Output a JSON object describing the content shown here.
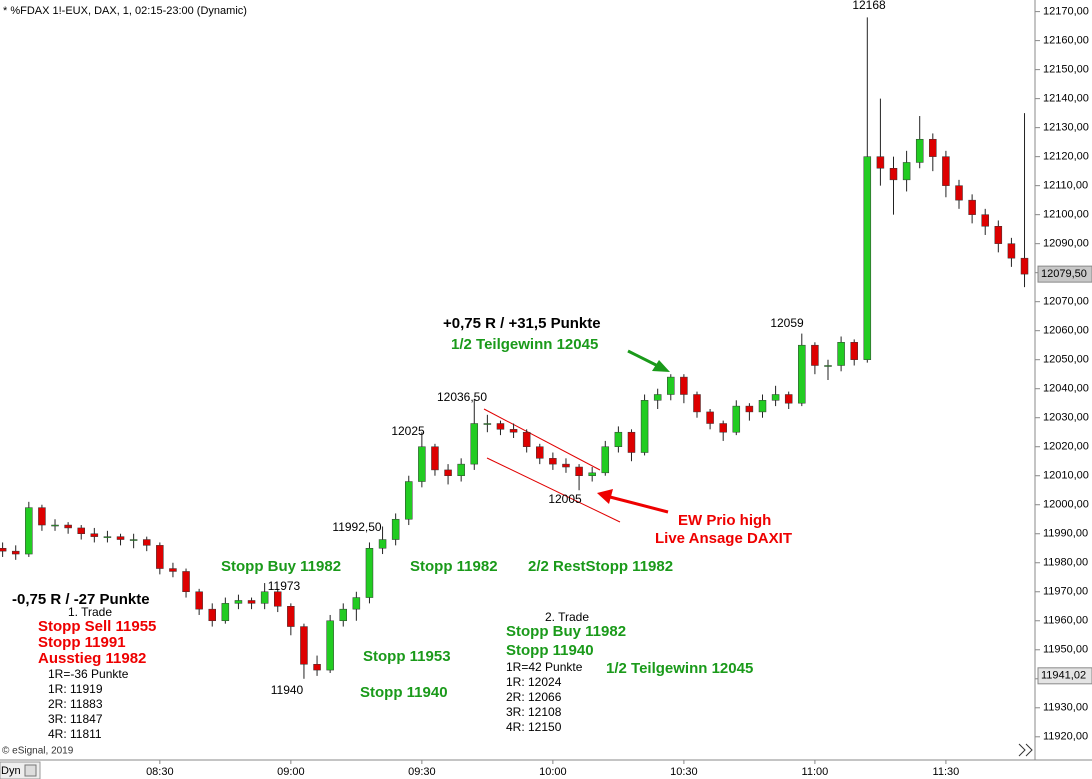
{
  "chart_data": {
    "type": "candlestick",
    "title": "* %FDAX 1!-EUX, DAX, 1, 02:15-23:00 (Dynamic)",
    "source": "© eSignal, 2019",
    "mode_label": "Dyn",
    "up_color": "#22cc22",
    "down_color": "#dd0000",
    "xlim": [
      -0.2,
      78.8
    ],
    "xticks": [
      {
        "value": 12,
        "label": "08:30"
      },
      {
        "value": 22,
        "label": "09:00"
      },
      {
        "value": 32,
        "label": "09:30"
      },
      {
        "value": 42,
        "label": "10:00"
      },
      {
        "value": 52,
        "label": "10:30"
      },
      {
        "value": 62,
        "label": "11:00"
      },
      {
        "value": 72,
        "label": "11:30"
      }
    ],
    "ylim": [
      11912,
      12174
    ],
    "yticks": [
      {
        "value": 11920,
        "label": "11920,00"
      },
      {
        "value": 11930,
        "label": "11930,00"
      },
      {
        "value": 11940,
        "label": "11940,00"
      },
      {
        "value": 11950,
        "label": "11950,00"
      },
      {
        "value": 11960,
        "label": "11960,00"
      },
      {
        "value": 11970,
        "label": "11970,00"
      },
      {
        "value": 11980,
        "label": "11980,00"
      },
      {
        "value": 11990,
        "label": "11990,00"
      },
      {
        "value": 12000,
        "label": "12000,00"
      },
      {
        "value": 12010,
        "label": "12010,00"
      },
      {
        "value": 12020,
        "label": "12020,00"
      },
      {
        "value": 12030,
        "label": "12030,00"
      },
      {
        "value": 12040,
        "label": "12040,00"
      },
      {
        "value": 12050,
        "label": "12050,00"
      },
      {
        "value": 12060,
        "label": "12060,00"
      },
      {
        "value": 12070,
        "label": "12070,00"
      },
      {
        "value": 12080,
        "label": "12080,00"
      },
      {
        "value": 12090,
        "label": "12090,00"
      },
      {
        "value": 12100,
        "label": "12100,00"
      },
      {
        "value": 12110,
        "label": "12110,00"
      },
      {
        "value": 12120,
        "label": "12120,00"
      },
      {
        "value": 12130,
        "label": "12130,00"
      },
      {
        "value": 12140,
        "label": "12140,00"
      },
      {
        "value": 12150,
        "label": "12150,00"
      },
      {
        "value": 12160,
        "label": "12160,00"
      },
      {
        "value": 12170,
        "label": "12170,00"
      }
    ],
    "markers": [
      {
        "value": 12079.5,
        "label": "12079,50",
        "color": "#c8c8c8"
      },
      {
        "value": 11941.02,
        "label": "11941,02",
        "color": "#e4e4e4"
      }
    ],
    "candles": [
      [
        11985,
        11987,
        11982,
        11984
      ],
      [
        11984,
        11986,
        11981,
        11983
      ],
      [
        11983,
        12001,
        11982,
        11999
      ],
      [
        11999,
        12000,
        11991,
        11993
      ],
      [
        11993,
        11995,
        11991,
        11993
      ],
      [
        11993,
        11994,
        11990,
        11992
      ],
      [
        11992,
        11993,
        11988,
        11990
      ],
      [
        11990,
        11992,
        11987,
        11989
      ],
      [
        11989,
        11991,
        11987,
        11989
      ],
      [
        11989,
        11990,
        11986,
        11988
      ],
      [
        11988,
        11990,
        11985,
        11988
      ],
      [
        11988,
        11989,
        11984,
        11986
      ],
      [
        11986,
        11987,
        11976,
        11978
      ],
      [
        11978,
        11980,
        11975,
        11977
      ],
      [
        11977,
        11978,
        11968,
        11970
      ],
      [
        11970,
        11971,
        11962,
        11964
      ],
      [
        11964,
        11966,
        11958,
        11960
      ],
      [
        11960,
        11968,
        11959,
        11966
      ],
      [
        11966,
        11969,
        11964,
        11967
      ],
      [
        11967,
        11968,
        11964,
        11966
      ],
      [
        11966,
        11973,
        11964,
        11970
      ],
      [
        11970,
        11971,
        11963,
        11965
      ],
      [
        11965,
        11966,
        11955,
        11958
      ],
      [
        11958,
        11959,
        11940,
        11945
      ],
      [
        11945,
        11948,
        11941,
        11943
      ],
      [
        11943,
        11962,
        11942,
        11960
      ],
      [
        11960,
        11966,
        11958,
        11964
      ],
      [
        11964,
        11970,
        11960,
        11968
      ],
      [
        11968,
        11987,
        11966,
        11985
      ],
      [
        11985,
        11992.5,
        11983,
        11988
      ],
      [
        11988,
        11997,
        11986,
        11995
      ],
      [
        11995,
        12010,
        11993,
        12008
      ],
      [
        12008,
        12025,
        12006,
        12020
      ],
      [
        12020,
        12021,
        12010,
        12012
      ],
      [
        12012,
        12014,
        12007,
        12010
      ],
      [
        12010,
        12016,
        12008,
        12014
      ],
      [
        12014,
        12036.5,
        12012,
        12028
      ],
      [
        12028,
        12031,
        12025,
        12028
      ],
      [
        12028,
        12029,
        12024,
        12026
      ],
      [
        12026,
        12028,
        12023,
        12025
      ],
      [
        12025,
        12026,
        12018,
        12020
      ],
      [
        12020,
        12021,
        12014,
        12016
      ],
      [
        12016,
        12018,
        12012,
        12014
      ],
      [
        12014,
        12016,
        12011,
        12013
      ],
      [
        12013,
        12014,
        12005,
        12010
      ],
      [
        12010,
        12013,
        12008,
        12011
      ],
      [
        12011,
        12022,
        12010,
        12020
      ],
      [
        12020,
        12027,
        12018,
        12025
      ],
      [
        12025,
        12026,
        12015,
        12018
      ],
      [
        12018,
        12038,
        12017,
        12036
      ],
      [
        12036,
        12040,
        12033,
        12038
      ],
      [
        12038,
        12045,
        12036,
        12044
      ],
      [
        12044,
        12045,
        12035,
        12038
      ],
      [
        12038,
        12039,
        12030,
        12032
      ],
      [
        12032,
        12033,
        12026,
        12028
      ],
      [
        12028,
        12029,
        12022,
        12025
      ],
      [
        12025,
        12036,
        12024,
        12034
      ],
      [
        12034,
        12035,
        12029,
        12032
      ],
      [
        12032,
        12038,
        12030,
        12036
      ],
      [
        12036,
        12041,
        12034,
        12038
      ],
      [
        12038,
        12039,
        12033,
        12035
      ],
      [
        12035,
        12059,
        12034,
        12055
      ],
      [
        12055,
        12056,
        12045,
        12048
      ],
      [
        12048,
        12050,
        12043,
        12048
      ],
      [
        12048,
        12058,
        12046,
        12056
      ],
      [
        12056,
        12057,
        12048,
        12050
      ],
      [
        12050,
        12168,
        12049,
        12120
      ],
      [
        12120,
        12140,
        12110,
        12116
      ],
      [
        12116,
        12120,
        12100,
        12112
      ],
      [
        12112,
        12122,
        12108,
        12118
      ],
      [
        12118,
        12134,
        12116,
        12126
      ],
      [
        12126,
        12128,
        12115,
        12120
      ],
      [
        12120,
        12122,
        12106,
        12110
      ],
      [
        12110,
        12112,
        12102,
        12105
      ],
      [
        12105,
        12107,
        12097,
        12100
      ],
      [
        12100,
        12102,
        12093,
        12096
      ],
      [
        12096,
        12098,
        12087,
        12090
      ],
      [
        12090,
        12092,
        12082,
        12085
      ],
      [
        12085,
        12135,
        12075,
        12079.5
      ]
    ],
    "price_labels": [
      12168,
      12059,
      {
        "value": 12036.5,
        "label": "12036,50"
      },
      12025,
      {
        "value": 11992.5,
        "label": "11992,50"
      },
      11973,
      11940,
      12005
    ],
    "annotations": [
      {
        "color": "#000000",
        "bold": true,
        "texts": [
          "+0,75 R / +31,5 Punkte",
          "-0,75 R / -27 Punkte"
        ]
      },
      {
        "color": "#1a9a1a",
        "bold": true,
        "texts": [
          "1/2 Teilgewinn 12045",
          "Stopp Buy 11982",
          "Stopp 11982",
          "2/2 RestStopp 11982",
          "Stopp 11953",
          "Stopp 11940",
          "Stopp Buy 11982",
          "Stopp 11940",
          "1/2 Teilgewinn 12045"
        ]
      },
      {
        "color": "#ee0000",
        "bold": true,
        "texts": [
          "EW Prio high",
          "Live Ansage DAXIT",
          "Stopp Sell 11955",
          "Stopp 11991",
          "Ausstieg 11982"
        ]
      },
      {
        "color": "#000000",
        "bold": false,
        "texts": [
          "1. Trade",
          "1R=-36 Punkte",
          "1R: 11919",
          "2R: 11883",
          "3R: 11847",
          "4R: 11811",
          "2. Trade",
          "1R=42 Punkte",
          "1R: 12024",
          "2R: 12066",
          "3R: 12108",
          "4R: 12150"
        ]
      }
    ]
  }
}
